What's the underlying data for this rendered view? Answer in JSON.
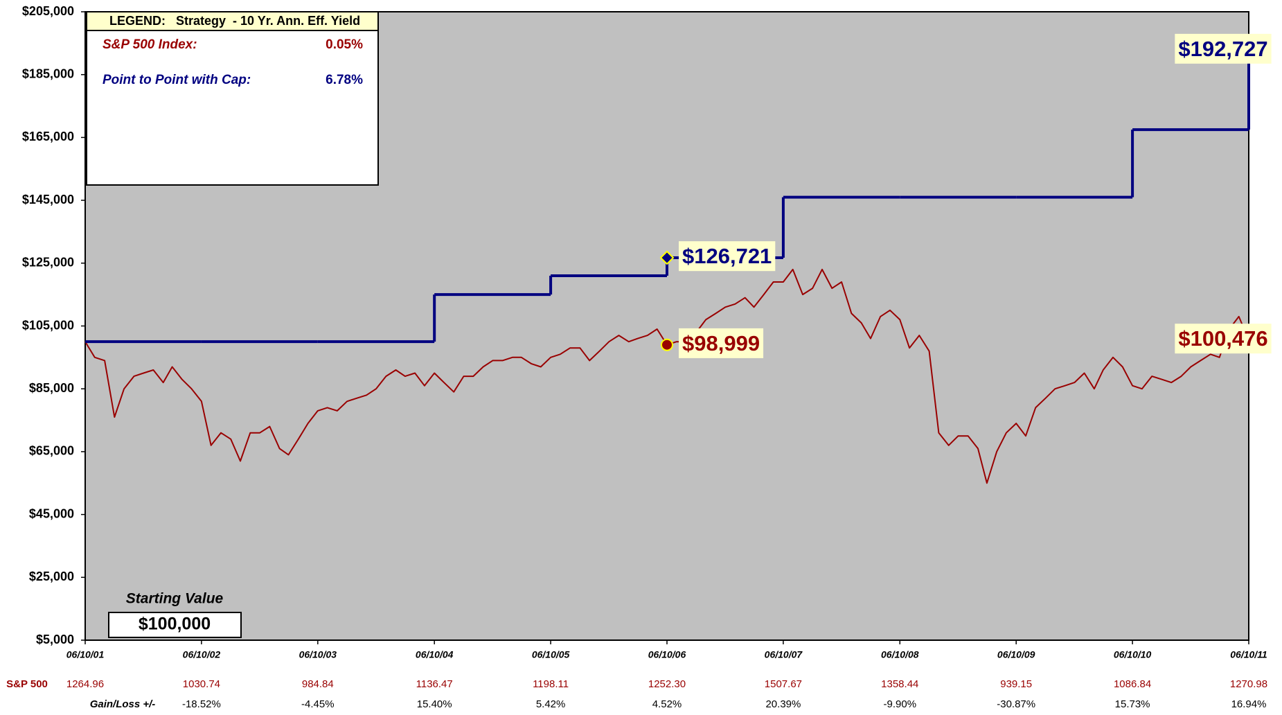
{
  "chart_data": {
    "type": "line",
    "xlim": [
      "06/10/01",
      "06/10/11"
    ],
    "xticks": [
      "06/10/01",
      "06/10/02",
      "06/10/03",
      "06/10/04",
      "06/10/05",
      "06/10/06",
      "06/10/07",
      "06/10/08",
      "06/10/09",
      "06/10/10",
      "06/10/11"
    ],
    "ylim": [
      5000,
      205000
    ],
    "yticks": [
      {
        "value": 5000,
        "label": "$5,000"
      },
      {
        "value": 25000,
        "label": "$25,000"
      },
      {
        "value": 45000,
        "label": "$45,000"
      },
      {
        "value": 65000,
        "label": "$65,000"
      },
      {
        "value": 85000,
        "label": "$85,000"
      },
      {
        "value": 105000,
        "label": "$105,000"
      },
      {
        "value": 125000,
        "label": "$125,000"
      },
      {
        "value": 145000,
        "label": "$145,000"
      },
      {
        "value": 165000,
        "label": "$165,000"
      },
      {
        "value": 185000,
        "label": "$185,000"
      },
      {
        "value": 205000,
        "label": "$205,000"
      }
    ],
    "legend": {
      "title": "LEGEND:   Strategy  - 10 Yr. Ann. Eff. Yield",
      "position": "upper left"
    },
    "series": [
      {
        "name": "S&P 500 Index:",
        "yield": "0.05%",
        "color": "#990000",
        "style": "line",
        "marker": "circle",
        "x": [
          "06/10/01",
          "07/10/01",
          "08/10/01",
          "09/10/01",
          "10/10/01",
          "11/10/01",
          "12/10/01",
          "01/10/02",
          "02/10/02",
          "03/10/02",
          "04/10/02",
          "05/10/02",
          "06/10/02",
          "07/10/02",
          "08/10/02",
          "09/10/02",
          "10/10/02",
          "11/10/02",
          "12/10/02",
          "01/10/03",
          "02/10/03",
          "03/10/03",
          "04/10/03",
          "05/10/03",
          "06/10/03",
          "07/10/03",
          "08/10/03",
          "09/10/03",
          "10/10/03",
          "11/10/03",
          "12/10/03",
          "01/10/04",
          "02/10/04",
          "03/10/04",
          "04/10/04",
          "05/10/04",
          "06/10/04",
          "07/10/04",
          "08/10/04",
          "09/10/04",
          "10/10/04",
          "11/10/04",
          "12/10/04",
          "01/10/05",
          "02/10/05",
          "03/10/05",
          "04/10/05",
          "05/10/05",
          "06/10/05",
          "07/10/05",
          "08/10/05",
          "09/10/05",
          "10/10/05",
          "11/10/05",
          "12/10/05",
          "01/10/06",
          "02/10/06",
          "03/10/06",
          "04/10/06",
          "05/10/06",
          "06/10/06",
          "07/10/06",
          "08/10/06",
          "09/10/06",
          "10/10/06",
          "11/10/06",
          "12/10/06",
          "01/10/07",
          "02/10/07",
          "03/10/07",
          "04/10/07",
          "05/10/07",
          "06/10/07",
          "07/10/07",
          "08/10/07",
          "09/10/07",
          "10/10/07",
          "11/10/07",
          "12/10/07",
          "01/10/08",
          "02/10/08",
          "03/10/08",
          "04/10/08",
          "05/10/08",
          "06/10/08",
          "07/10/08",
          "08/10/08",
          "09/10/08",
          "10/10/08",
          "11/10/08",
          "12/10/08",
          "01/10/09",
          "02/10/09",
          "03/10/09",
          "04/10/09",
          "05/10/09",
          "06/10/09",
          "07/10/09",
          "08/10/09",
          "09/10/09",
          "10/10/09",
          "11/10/09",
          "12/10/09",
          "01/10/10",
          "02/10/10",
          "03/10/10",
          "04/10/10",
          "05/10/10",
          "06/10/10",
          "07/10/10",
          "08/10/10",
          "09/10/10",
          "10/10/10",
          "11/10/10",
          "12/10/10",
          "01/10/11",
          "02/10/11",
          "03/10/11",
          "04/10/11",
          "05/10/11",
          "06/10/11"
        ],
        "values": [
          100000,
          95000,
          94000,
          76000,
          85000,
          89000,
          90000,
          91000,
          87000,
          92000,
          88000,
          85000,
          81000,
          67000,
          71000,
          69000,
          62000,
          71000,
          71000,
          73000,
          66000,
          64000,
          69000,
          74000,
          78000,
          79000,
          78000,
          81000,
          82000,
          83000,
          85000,
          89000,
          91000,
          89000,
          90000,
          86000,
          90000,
          87000,
          84000,
          89000,
          89000,
          92000,
          94000,
          94000,
          95000,
          95000,
          93000,
          92000,
          95000,
          96000,
          98000,
          98000,
          94000,
          97000,
          100000,
          102000,
          100000,
          101000,
          102000,
          104000,
          98999,
          100000,
          100000,
          103000,
          107000,
          109000,
          111000,
          112000,
          114000,
          111000,
          115000,
          119000,
          119000,
          123000,
          115000,
          117000,
          123000,
          117000,
          119000,
          109000,
          106000,
          101000,
          108000,
          110000,
          107000,
          98000,
          102000,
          97000,
          71000,
          67000,
          70000,
          70000,
          66000,
          55000,
          65000,
          71000,
          74000,
          70000,
          79000,
          82000,
          85000,
          86000,
          87000,
          90000,
          85000,
          91000,
          95000,
          92000,
          86000,
          85000,
          89000,
          88000,
          87000,
          89000,
          92000,
          94000,
          96000,
          95000,
          104000,
          108000,
          100476
        ],
        "value_labels": [
          null,
          null,
          null,
          null,
          null,
          null,
          null,
          null,
          null,
          null,
          null,
          null,
          null,
          null,
          null,
          null,
          null,
          null,
          null,
          null,
          null,
          null,
          null,
          null,
          null,
          null,
          null,
          null,
          null,
          null,
          null,
          null,
          null,
          null,
          null,
          null,
          null,
          null,
          null,
          null,
          null,
          null,
          null,
          null,
          null,
          null,
          null,
          null,
          null,
          null,
          null,
          null,
          null,
          null,
          null,
          null,
          null,
          null,
          null,
          null,
          "$98,999",
          null,
          null,
          null,
          null,
          null,
          null,
          null,
          null,
          null,
          null,
          null,
          null,
          null,
          null,
          null,
          null,
          null,
          null,
          null,
          null,
          null,
          null,
          null,
          null,
          null,
          null,
          null,
          null,
          null,
          null,
          null,
          null,
          null,
          null,
          null,
          null,
          null,
          null,
          null,
          null,
          null,
          null,
          null,
          null,
          null,
          null,
          null,
          null,
          null,
          null,
          null,
          null,
          null,
          null,
          null,
          null,
          null,
          null,
          null,
          "$100,476"
        ]
      },
      {
        "name": "Point to Point with Cap:",
        "yield": "6.78%",
        "color": "#000080",
        "style": "step",
        "marker": "diamond",
        "x": [
          "06/10/01",
          "06/10/02",
          "06/10/03",
          "06/10/04",
          "06/10/05",
          "06/10/06",
          "06/10/07",
          "06/10/08",
          "06/10/09",
          "06/10/10",
          "06/10/11"
        ],
        "values": [
          100000,
          100000,
          100000,
          115000,
          121000,
          126721,
          146000,
          146000,
          146000,
          167500,
          192727
        ],
        "value_labels": [
          null,
          null,
          null,
          null,
          null,
          "$126,721",
          null,
          null,
          null,
          null,
          "$192,727"
        ]
      }
    ],
    "starting_value": {
      "label": "Starting Value",
      "text": "$100,000"
    },
    "table": {
      "rows": [
        {
          "label": "S&P 500",
          "cells": [
            "1264.96",
            "1030.74",
            "984.84",
            "1136.47",
            "1198.11",
            "1252.30",
            "1507.67",
            "1358.44",
            "939.15",
            "1086.84",
            "1270.98"
          ]
        },
        {
          "label": "Gain/Loss +/-",
          "cells": [
            "-18.52%",
            "-4.45%",
            "15.40%",
            "5.42%",
            "4.52%",
            "20.39%",
            "-9.90%",
            "-30.87%",
            "15.73%",
            "16.94%"
          ]
        }
      ]
    }
  }
}
